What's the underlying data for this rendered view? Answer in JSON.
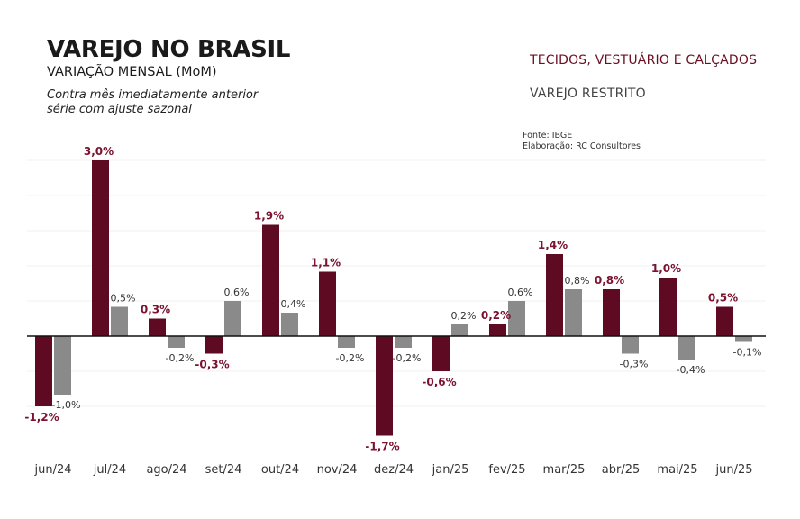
{
  "header": {
    "title": "VAREJO NO BRASIL",
    "subtitle": "VARIAÇÃO MENSAL (MoM)",
    "note_line1": "Contra mês imediatamente anterior",
    "note_line2": "série com ajuste sazonal",
    "source_line1": "Fonte: IBGE",
    "source_line2": "Elaboração: RC Consultores"
  },
  "legend": {
    "series1": "TECIDOS, VESTUÁRIO E CALÇADOS",
    "series2": "VAREJO RESTRITO"
  },
  "colors": {
    "series1": "#5e0a22",
    "series2": "#8a8a8a",
    "label1": "#7a1230"
  },
  "chart_data": {
    "type": "bar",
    "title": "VAREJO NO BRASIL",
    "xlabel": "",
    "ylabel": "",
    "ylim": [
      -2.0,
      3.2
    ],
    "categories": [
      "jun/24",
      "jul/24",
      "ago/24",
      "set/24",
      "out/24",
      "nov/24",
      "dez/24",
      "jan/25",
      "fev/25",
      "mar/25",
      "abr/25",
      "mai/25",
      "jun/25"
    ],
    "series": [
      {
        "name": "TECIDOS, VESTUÁRIO E CALÇADOS",
        "values": [
          -1.2,
          3.0,
          0.3,
          -0.3,
          1.9,
          1.1,
          -1.7,
          -0.6,
          0.2,
          1.4,
          0.8,
          1.0,
          0.5
        ],
        "labels": [
          "-1,2%",
          "3,0%",
          "0,3%",
          "-0,3%",
          "1,9%",
          "1,1%",
          "-1,7%",
          "-0,6%",
          "0,2%",
          "1,4%",
          "0,8%",
          "1,0%",
          "0,5%"
        ]
      },
      {
        "name": "VAREJO RESTRITO",
        "values": [
          -1.0,
          0.5,
          -0.2,
          0.6,
          0.4,
          -0.2,
          -0.2,
          0.2,
          0.6,
          0.8,
          -0.3,
          -0.4,
          -0.1
        ],
        "labels": [
          "-1,0%",
          "0,5%",
          "-0,2%",
          "0,6%",
          "0,4%",
          "-0,2%",
          "-0,2%",
          "0,2%",
          "0,6%",
          "0,8%",
          "-0,3%",
          "-0,4%",
          "-0,1%"
        ]
      }
    ],
    "grid": true,
    "legend_position": "top-right"
  }
}
